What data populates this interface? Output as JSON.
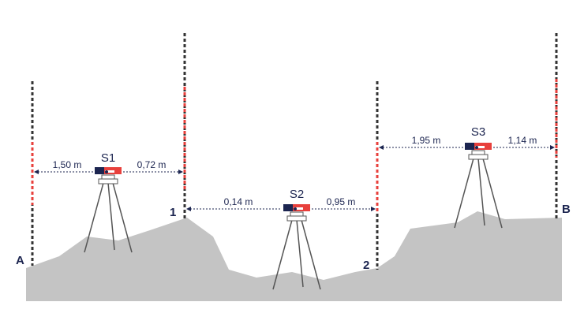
{
  "points": [
    {
      "label": "A"
    },
    {
      "label": "1"
    },
    {
      "label": "2"
    },
    {
      "label": "B"
    }
  ],
  "stations": [
    {
      "label": "S1",
      "backsight": "1,50 m",
      "foresight": "0,72 m"
    },
    {
      "label": "S2",
      "backsight": "0,14 m",
      "foresight": "0,95 m"
    },
    {
      "label": "S3",
      "backsight": "1,95 m",
      "foresight": "1,14 m"
    }
  ]
}
